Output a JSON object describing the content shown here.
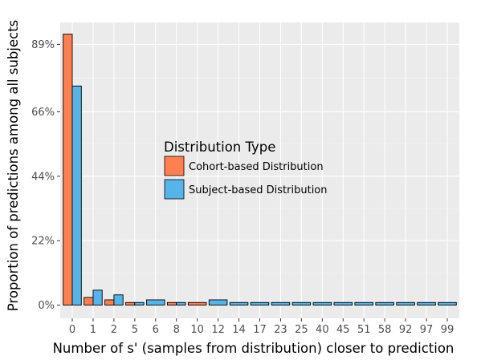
{
  "chart_data": {
    "type": "bar",
    "xlabel": "Number of s' (samples from distribution) closer to prediction",
    "ylabel": "Proportion of predictions among all subjects",
    "categories": [
      "0",
      "1",
      "2",
      "5",
      "6",
      "8",
      "10",
      "12",
      "14",
      "17",
      "23",
      "25",
      "40",
      "45",
      "51",
      "58",
      "92",
      "97",
      "99"
    ],
    "y_ticks": [
      {
        "value": 0,
        "label": "0%"
      },
      {
        "value": 22,
        "label": "22%"
      },
      {
        "value": 44,
        "label": "44%"
      },
      {
        "value": 66,
        "label": "66%"
      },
      {
        "value": 89,
        "label": "89%"
      }
    ],
    "ylim": [
      -4.5,
      96.5
    ],
    "grid": true,
    "legend": {
      "title": "Distribution Type",
      "placement": "inside-center"
    },
    "series": [
      {
        "name": "Cohort-based Distribution",
        "color": "#ff7f50",
        "values": [
          92.5,
          2.6,
          1.8,
          0.9,
          null,
          0.9,
          0.9,
          null,
          null,
          null,
          null,
          null,
          null,
          null,
          null,
          null,
          null,
          null,
          null
        ]
      },
      {
        "name": "Subject-based Distribution",
        "color": "#56b4e9",
        "values": [
          74.8,
          5.1,
          3.5,
          0.9,
          1.8,
          0.9,
          null,
          1.8,
          0.9,
          0.9,
          0.9,
          0.9,
          0.9,
          0.9,
          0.9,
          0.9,
          0.9,
          0.9,
          0.9
        ]
      }
    ]
  }
}
